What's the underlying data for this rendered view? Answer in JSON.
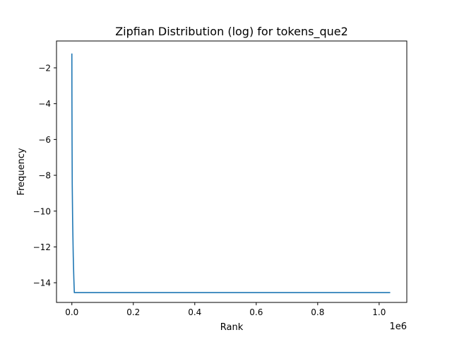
{
  "chart_data": {
    "type": "line",
    "title": "Zipfian Distribution (log) for tokens_que2",
    "xlabel": "Rank",
    "ylabel": "Frequency",
    "x_scale_label": "1e6",
    "xlim": [
      -50000,
      1090000
    ],
    "ylim": [
      -15.1,
      -0.5
    ],
    "x_ticks": [
      0,
      200000,
      400000,
      600000,
      800000,
      1000000
    ],
    "x_tick_labels": [
      "0.0",
      "0.2",
      "0.4",
      "0.6",
      "0.8",
      "1.0"
    ],
    "y_ticks": [
      -2,
      -4,
      -6,
      -8,
      -10,
      -12,
      -14
    ],
    "y_tick_labels": [
      "−2",
      "−4",
      "−6",
      "−8",
      "−10",
      "−12",
      "−14"
    ],
    "grid": false,
    "series": [
      {
        "color": "#1f77b4",
        "points": [
          [
            0,
            -1.2
          ],
          [
            200,
            -3.5
          ],
          [
            600,
            -6.0
          ],
          [
            1200,
            -8.5
          ],
          [
            2500,
            -10.5
          ],
          [
            4500,
            -12.5
          ],
          [
            6500,
            -13.8
          ],
          [
            8000,
            -14.55
          ],
          [
            1036000,
            -14.55
          ]
        ]
      }
    ]
  }
}
